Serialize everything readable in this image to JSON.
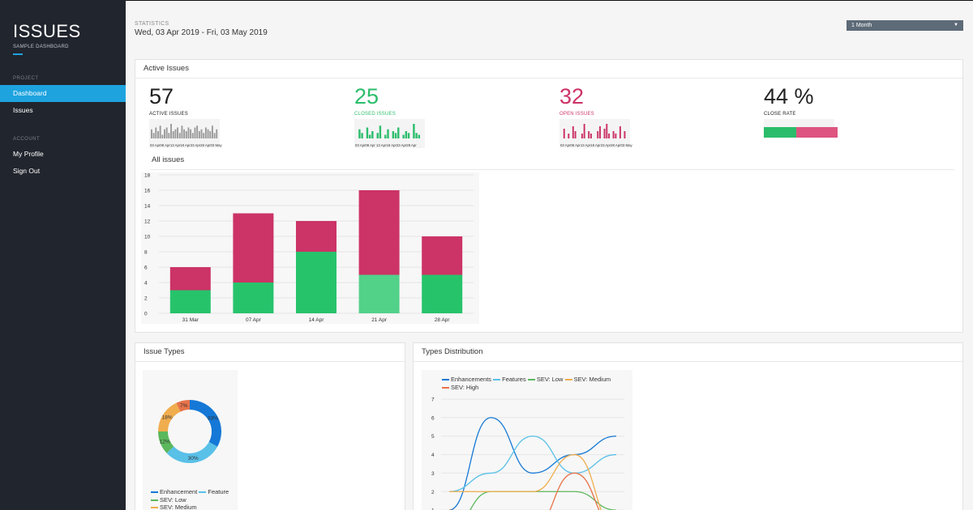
{
  "app": {
    "title": "ISSUES",
    "subtitle": "SAMPLE DASHBOARD"
  },
  "sidebar": {
    "sections": [
      {
        "label": "PROJECT",
        "items": [
          {
            "label": "Dashboard",
            "active": true
          },
          {
            "label": "Issues",
            "active": false
          }
        ]
      },
      {
        "label": "ACCOUNT",
        "items": [
          {
            "label": "My Profile",
            "active": false
          },
          {
            "label": "Sign Out",
            "active": false
          }
        ]
      }
    ]
  },
  "header": {
    "stat_label": "STATISTICS",
    "date_range": "Wed, 03 Apr 2019 - Fri, 03 May 2019"
  },
  "range_select": {
    "value": "1 Month",
    "caret": "▼"
  },
  "active_issues_panel": {
    "title": "Active Issues",
    "kpis": [
      {
        "value": "57",
        "label": "ACTIVE ISSUES",
        "color": "#222222",
        "spark_color": "#999999",
        "axis": "03 Apr08 Apr13 Apr18 Apr23 Apr28 Apr03 May",
        "spark": [
          5,
          3,
          6,
          4,
          7,
          2,
          5,
          6,
          3,
          8,
          4,
          5,
          6,
          3,
          7,
          5,
          4,
          6,
          5,
          3,
          6,
          7,
          4,
          5,
          3,
          6,
          5,
          4,
          7,
          3,
          5
        ]
      },
      {
        "value": "25",
        "label": "CLOSED ISSUES",
        "color": "#2bbd6b",
        "spark_color": "#2bbd6b",
        "axis": "03 Apr08 Apr 13 Apr18 Apr23 Apr28 Apr",
        "spark": [
          0,
          5,
          3,
          0,
          6,
          2,
          4,
          0,
          3,
          7,
          0,
          2,
          5,
          0,
          4,
          3,
          6,
          0,
          2,
          4,
          3,
          0,
          8,
          3,
          2,
          0
        ]
      },
      {
        "value": "32",
        "label": "OPEN ISSUES",
        "color": "#cc3366",
        "spark_color": "#cc3366",
        "axis": "03 Apr08 Apr13 Apr18 Apr23 Apr28 Apr03 May",
        "spark": [
          0,
          4,
          0,
          2,
          0,
          5,
          3,
          0,
          0,
          2,
          6,
          0,
          3,
          2,
          0,
          0,
          3,
          5,
          0,
          4,
          6,
          2,
          0,
          3,
          2,
          0,
          5,
          0,
          3,
          0
        ]
      },
      {
        "value": "44 %",
        "label": "CLOSE RATE",
        "color": "#222222",
        "rate": 0.44,
        "rate_color": "#2bbd6b",
        "rest_color": "#dd5580"
      }
    ]
  },
  "all_issues": {
    "title": "All issues"
  },
  "issue_types_panel": {
    "title": "Issue Types"
  },
  "types_distribution_panel": {
    "title": "Types Distribution"
  },
  "chart_data": [
    {
      "type": "bar",
      "title": "All issues",
      "categories": [
        "31 Mar",
        "07 Apr",
        "14 Apr",
        "21 Apr",
        "28 Apr"
      ],
      "series": [
        {
          "values": [
            3,
            4,
            8,
            5,
            5
          ],
          "color": "#27c36b"
        },
        {
          "values": [
            3,
            9,
            4,
            11,
            5
          ],
          "color": "#cc3366"
        }
      ],
      "stacked": true,
      "ylim": [
        0,
        18
      ],
      "yticks": [
        0,
        2,
        4,
        6,
        8,
        10,
        12,
        14,
        16,
        18
      ],
      "grid": true,
      "highlighted_category": "21 Apr"
    },
    {
      "type": "pie",
      "title": "Issue Types",
      "donut": true,
      "slices": [
        {
          "label": "Enhancement",
          "value": 33,
          "color": "#1578d6",
          "show_label": true
        },
        {
          "label": "Feature",
          "value": 30,
          "color": "#59c0e8",
          "show_label": true
        },
        {
          "label": "SEV: Low",
          "value": 12,
          "color": "#5cb85c",
          "show_label": true
        },
        {
          "label": "SEV: Medium",
          "value": 18,
          "color": "#f0ad4e",
          "show_label": true
        },
        {
          "label": "SEV: High",
          "value": 7,
          "color": "#e8734a",
          "show_label": true
        }
      ],
      "legend": "bottom",
      "legend_visible": [
        "Enhancement",
        "Feature",
        "SEV: Low",
        "SEV: Medium"
      ]
    },
    {
      "type": "line",
      "title": "Types Distribution",
      "x": [
        0,
        1,
        2,
        3,
        4,
        5
      ],
      "ylim": [
        0,
        7
      ],
      "yticks": [
        1,
        2,
        3,
        4,
        5,
        6,
        7
      ],
      "series": [
        {
          "name": "Enhancements",
          "values": [
            1,
            6,
            3,
            4,
            5,
            5
          ],
          "color": "#1578d6"
        },
        {
          "name": "Features",
          "values": [
            2,
            3,
            5,
            3,
            4,
            4
          ],
          "color": "#59c0e8"
        },
        {
          "name": "SEV: Low",
          "values": [
            0,
            2,
            2,
            2,
            1,
            1
          ],
          "color": "#5cb85c"
        },
        {
          "name": "SEV: Medium",
          "values": [
            2,
            2,
            2,
            4,
            0,
            0
          ],
          "color": "#f0ad4e"
        },
        {
          "name": "SEV: High",
          "values": [
            1,
            0,
            0,
            3,
            0,
            0
          ],
          "color": "#e8734a"
        }
      ],
      "visible_points": 5,
      "legend": "top-left",
      "grid": true
    }
  ]
}
